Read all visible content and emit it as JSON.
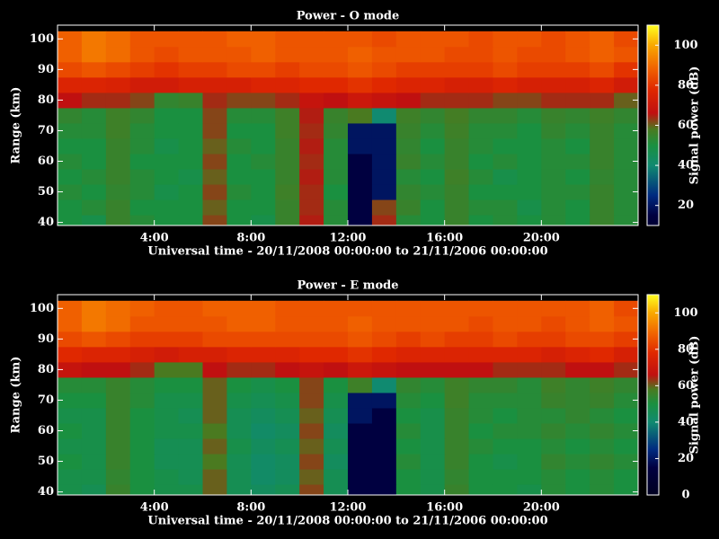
{
  "chart_data": [
    {
      "type": "heatmap",
      "title": "Power - O mode",
      "xlabel": "Universal time - 20/11/2008 00:00:00 to 21/11/2006 00:00:00",
      "ylabel": "Range (km)",
      "colorbar_label": "Signal power (dB)",
      "xlim": [
        0,
        24
      ],
      "ylim": [
        39,
        104.5
      ],
      "zlim": [
        10,
        110
      ],
      "xticks": [
        {
          "value": 4,
          "label": "4:00"
        },
        {
          "value": 8,
          "label": "8:00"
        },
        {
          "value": 12,
          "label": "12:00"
        },
        {
          "value": 16,
          "label": "16:00"
        },
        {
          "value": 20,
          "label": "20:00"
        }
      ],
      "yticks": [
        40,
        50,
        60,
        70,
        80,
        90,
        100
      ],
      "zticks": [
        20,
        40,
        60,
        80,
        100
      ],
      "colorscale": [
        [
          0,
          "#000020"
        ],
        [
          15,
          "#000040"
        ],
        [
          25,
          "#002a80"
        ],
        [
          40,
          "#108a70"
        ],
        [
          50,
          "#1a9040"
        ],
        [
          58,
          "#4a7a20"
        ],
        [
          66,
          "#c01010"
        ],
        [
          78,
          "#e02800"
        ],
        [
          88,
          "#f06000"
        ],
        [
          100,
          "#f8a800"
        ],
        [
          110,
          "#ffff20"
        ]
      ],
      "x": [
        0.5,
        1.5,
        2.5,
        3.5,
        4.5,
        5.5,
        6.5,
        7.5,
        8.5,
        9.5,
        10.5,
        11.5,
        12.5,
        13.5,
        14.5,
        15.5,
        16.5,
        17.5,
        18.5,
        19.5,
        20.5,
        21.5,
        22.5,
        23.5
      ],
      "y": [
        40,
        45,
        50,
        55,
        60,
        65,
        70,
        75,
        80,
        85,
        90,
        95,
        100
      ],
      "z": [
        [
          50,
          48,
          55,
          52,
          50,
          50,
          62,
          50,
          48,
          55,
          65,
          52,
          15,
          64,
          52,
          50,
          55,
          50,
          52,
          50,
          52,
          50,
          55,
          52
        ],
        [
          50,
          52,
          55,
          50,
          50,
          50,
          60,
          50,
          50,
          55,
          64,
          52,
          15,
          62,
          55,
          50,
          55,
          52,
          52,
          48,
          52,
          50,
          55,
          52
        ],
        [
          52,
          50,
          54,
          52,
          48,
          50,
          62,
          52,
          50,
          56,
          64,
          50,
          15,
          20,
          54,
          52,
          55,
          50,
          50,
          50,
          52,
          52,
          55,
          52
        ],
        [
          50,
          52,
          55,
          52,
          50,
          48,
          60,
          50,
          50,
          55,
          65,
          52,
          15,
          20,
          52,
          50,
          56,
          52,
          48,
          50,
          52,
          50,
          54,
          52
        ],
        [
          52,
          50,
          55,
          50,
          50,
          50,
          62,
          50,
          52,
          55,
          64,
          52,
          15,
          20,
          55,
          52,
          55,
          50,
          52,
          50,
          52,
          52,
          55,
          52
        ],
        [
          50,
          50,
          55,
          52,
          48,
          50,
          60,
          52,
          50,
          55,
          65,
          52,
          20,
          20,
          54,
          50,
          55,
          52,
          50,
          50,
          52,
          50,
          55,
          52
        ],
        [
          52,
          52,
          56,
          52,
          50,
          50,
          62,
          50,
          50,
          56,
          64,
          54,
          20,
          20,
          55,
          52,
          56,
          52,
          52,
          50,
          54,
          52,
          55,
          52
        ],
        [
          54,
          52,
          56,
          54,
          50,
          50,
          62,
          52,
          52,
          56,
          65,
          55,
          58,
          40,
          56,
          54,
          57,
          54,
          54,
          52,
          55,
          54,
          56,
          54
        ],
        [
          66,
          64,
          64,
          62,
          54,
          55,
          64,
          62,
          62,
          64,
          68,
          66,
          70,
          68,
          66,
          64,
          64,
          64,
          62,
          62,
          64,
          64,
          64,
          60
        ],
        [
          76,
          76,
          75,
          72,
          72,
          74,
          74,
          74,
          76,
          76,
          78,
          78,
          80,
          78,
          76,
          76,
          74,
          74,
          76,
          74,
          74,
          74,
          76,
          72
        ],
        [
          84,
          86,
          84,
          82,
          80,
          82,
          82,
          84,
          84,
          82,
          84,
          84,
          86,
          84,
          82,
          82,
          82,
          82,
          84,
          82,
          82,
          82,
          84,
          80
        ],
        [
          88,
          92,
          90,
          86,
          84,
          86,
          86,
          86,
          88,
          86,
          86,
          86,
          88,
          86,
          86,
          86,
          84,
          84,
          86,
          84,
          84,
          86,
          88,
          86
        ],
        [
          88,
          92,
          90,
          86,
          86,
          86,
          86,
          88,
          88,
          86,
          86,
          86,
          86,
          84,
          86,
          86,
          86,
          84,
          86,
          86,
          84,
          86,
          88,
          84
        ]
      ]
    },
    {
      "type": "heatmap",
      "title": "Power - E mode",
      "xlabel": "Universal time - 20/11/2008 00:00:00 to 21/11/2006 00:00:00",
      "ylabel": "Range (km)",
      "colorbar_label": "Signal power (dB)",
      "xlim": [
        0,
        24
      ],
      "ylim": [
        39,
        104.5
      ],
      "zlim": [
        0,
        110
      ],
      "xticks": [
        {
          "value": 4,
          "label": "4:00"
        },
        {
          "value": 8,
          "label": "8:00"
        },
        {
          "value": 12,
          "label": "12:00"
        },
        {
          "value": 16,
          "label": "16:00"
        },
        {
          "value": 20,
          "label": "20:00"
        }
      ],
      "yticks": [
        40,
        50,
        60,
        70,
        80,
        90,
        100
      ],
      "zticks": [
        0,
        20,
        40,
        60,
        80,
        100
      ],
      "colorscale": [
        [
          0,
          "#000020"
        ],
        [
          15,
          "#000040"
        ],
        [
          25,
          "#002a80"
        ],
        [
          40,
          "#108a70"
        ],
        [
          50,
          "#1a9040"
        ],
        [
          58,
          "#4a7a20"
        ],
        [
          66,
          "#c01010"
        ],
        [
          78,
          "#e02800"
        ],
        [
          88,
          "#f06000"
        ],
        [
          100,
          "#f8a800"
        ],
        [
          110,
          "#ffff20"
        ]
      ],
      "x": [
        0.5,
        1.5,
        2.5,
        3.5,
        4.5,
        5.5,
        6.5,
        7.5,
        8.5,
        9.5,
        10.5,
        11.5,
        12.5,
        13.5,
        14.5,
        15.5,
        16.5,
        17.5,
        18.5,
        19.5,
        20.5,
        21.5,
        22.5,
        23.5
      ],
      "y": [
        40,
        45,
        50,
        55,
        60,
        65,
        70,
        75,
        80,
        85,
        90,
        95,
        100
      ],
      "z": [
        [
          48,
          46,
          55,
          50,
          48,
          48,
          60,
          46,
          44,
          46,
          62,
          46,
          15,
          15,
          50,
          48,
          55,
          50,
          50,
          48,
          52,
          50,
          52,
          50
        ],
        [
          48,
          48,
          54,
          50,
          48,
          46,
          60,
          46,
          42,
          44,
          60,
          46,
          15,
          15,
          50,
          48,
          54,
          50,
          50,
          50,
          52,
          50,
          52,
          50
        ],
        [
          50,
          48,
          55,
          50,
          46,
          46,
          58,
          46,
          42,
          44,
          62,
          44,
          15,
          15,
          52,
          48,
          55,
          50,
          48,
          50,
          54,
          52,
          54,
          52
        ],
        [
          48,
          48,
          55,
          50,
          46,
          46,
          60,
          48,
          44,
          46,
          60,
          46,
          15,
          15,
          50,
          48,
          55,
          52,
          50,
          50,
          52,
          50,
          52,
          50
        ],
        [
          50,
          48,
          55,
          50,
          48,
          48,
          58,
          46,
          42,
          44,
          62,
          44,
          15,
          15,
          52,
          48,
          55,
          50,
          52,
          52,
          54,
          52,
          54,
          52
        ],
        [
          48,
          48,
          55,
          50,
          48,
          46,
          60,
          46,
          44,
          46,
          60,
          46,
          20,
          15,
          50,
          48,
          55,
          52,
          50,
          52,
          52,
          54,
          52,
          50
        ],
        [
          50,
          50,
          55,
          52,
          48,
          48,
          60,
          48,
          46,
          48,
          62,
          48,
          20,
          20,
          52,
          50,
          56,
          52,
          52,
          52,
          55,
          54,
          55,
          52
        ],
        [
          52,
          52,
          55,
          52,
          50,
          50,
          60,
          50,
          48,
          50,
          62,
          50,
          56,
          40,
          54,
          52,
          56,
          54,
          54,
          52,
          56,
          54,
          56,
          54
        ],
        [
          68,
          66,
          66,
          64,
          58,
          58,
          66,
          64,
          64,
          66,
          68,
          66,
          70,
          68,
          66,
          66,
          66,
          66,
          64,
          64,
          64,
          66,
          66,
          64
        ],
        [
          78,
          76,
          76,
          74,
          72,
          74,
          74,
          76,
          76,
          76,
          78,
          78,
          80,
          78,
          76,
          76,
          76,
          76,
          76,
          76,
          74,
          76,
          78,
          74
        ],
        [
          84,
          86,
          84,
          82,
          82,
          82,
          84,
          84,
          84,
          84,
          84,
          84,
          86,
          84,
          82,
          84,
          82,
          82,
          84,
          82,
          82,
          84,
          84,
          82
        ],
        [
          88,
          92,
          90,
          86,
          86,
          86,
          86,
          88,
          88,
          86,
          86,
          86,
          88,
          86,
          86,
          86,
          86,
          84,
          86,
          86,
          84,
          86,
          88,
          86
        ],
        [
          88,
          92,
          90,
          88,
          86,
          86,
          88,
          88,
          88,
          86,
          86,
          86,
          86,
          86,
          86,
          86,
          86,
          86,
          86,
          86,
          86,
          86,
          88,
          84
        ]
      ]
    }
  ]
}
